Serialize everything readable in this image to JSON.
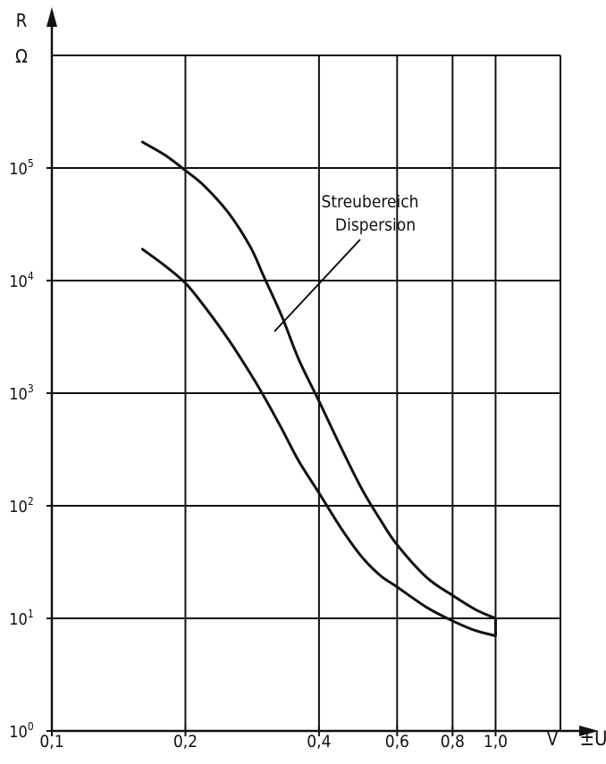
{
  "chart_data": {
    "type": "line",
    "x_scale": "log",
    "y_scale": "log",
    "xlim": [
      0.1,
      1.4
    ],
    "ylim": [
      1,
      1000000
    ],
    "x_ticks": [
      0.1,
      0.2,
      0.4,
      0.6,
      0.8,
      1.0
    ],
    "x_tick_labels": [
      "0,1",
      "0,2",
      "0,4",
      "0,6",
      "0,8",
      "1,0"
    ],
    "x_unit": "V",
    "xlabel": "±U",
    "y_ticks": [
      1,
      10,
      100,
      1000,
      10000,
      100000
    ],
    "y_tick_labels": [
      {
        "base": "10",
        "exp": "0"
      },
      {
        "base": "10",
        "exp": "1"
      },
      {
        "base": "10",
        "exp": "2"
      },
      {
        "base": "10",
        "exp": "3"
      },
      {
        "base": "10",
        "exp": "4"
      },
      {
        "base": "10",
        "exp": "5"
      }
    ],
    "ylabel": "R",
    "y_unit": "Ω",
    "grid": true,
    "annotation": {
      "lines": [
        "Streubereich",
        "Dispersion"
      ]
    },
    "series": [
      {
        "x": [
          0.16,
          0.18,
          0.2,
          0.22,
          0.25,
          0.28,
          0.3,
          0.33,
          0.36,
          0.4,
          0.45,
          0.5,
          0.55,
          0.6,
          0.7,
          0.8,
          0.9,
          1.0
        ],
        "y": [
          170000,
          130000,
          95000,
          70000,
          40000,
          20000,
          11000,
          4800,
          2000,
          850,
          320,
          140,
          75,
          45,
          23,
          16,
          12,
          10
        ]
      },
      {
        "x": [
          0.16,
          0.18,
          0.2,
          0.22,
          0.25,
          0.28,
          0.3,
          0.33,
          0.36,
          0.4,
          0.45,
          0.5,
          0.55,
          0.6,
          0.7,
          0.8,
          0.9,
          1.0
        ],
        "y": [
          19000,
          13500,
          9500,
          6000,
          3000,
          1500,
          950,
          480,
          250,
          130,
          62,
          35,
          24,
          19,
          12.5,
          9.5,
          7.8,
          7
        ]
      }
    ]
  }
}
